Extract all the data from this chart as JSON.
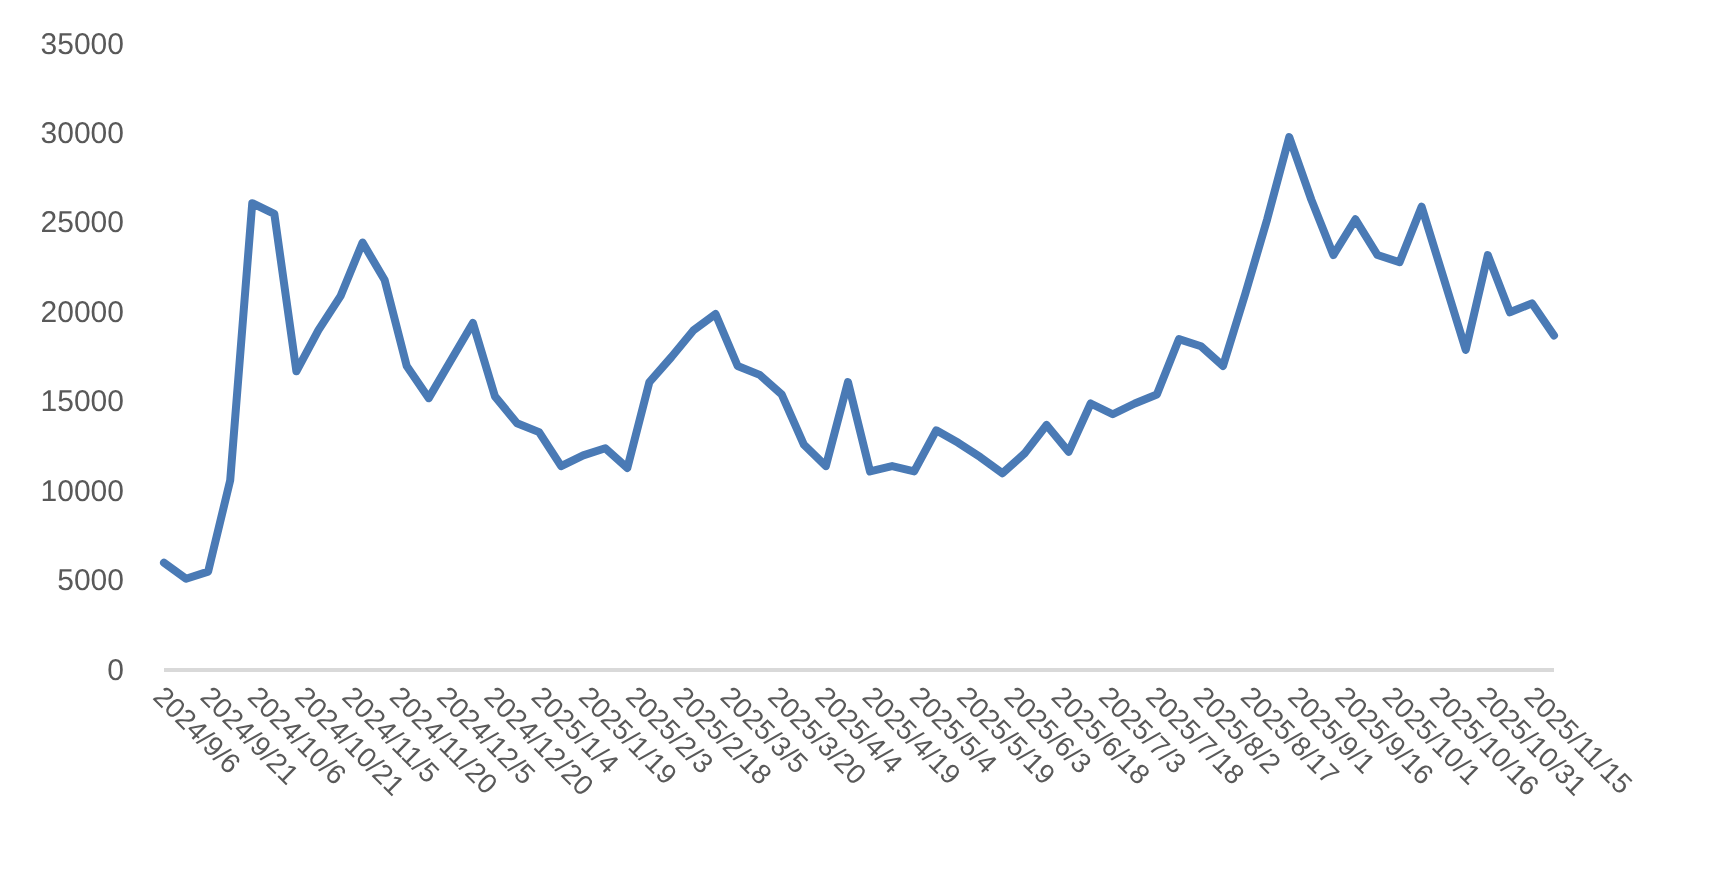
{
  "chart_data": {
    "type": "line",
    "x": [
      "2024-09-06",
      "2024-09-13",
      "2024-09-20",
      "2024-09-27",
      "2024-10-04",
      "2024-10-11",
      "2024-10-18",
      "2024-10-25",
      "2024-11-01",
      "2024-11-08",
      "2024-11-15",
      "2024-11-22",
      "2024-11-29",
      "2024-12-06",
      "2024-12-13",
      "2024-12-20",
      "2024-12-27",
      "2025-01-03",
      "2025-01-10",
      "2025-01-17",
      "2025-01-24",
      "2025-01-31",
      "2025-02-07",
      "2025-02-14",
      "2025-02-21",
      "2025-02-28",
      "2025-03-07",
      "2025-03-14",
      "2025-03-21",
      "2025-03-28",
      "2025-04-04",
      "2025-04-11",
      "2025-04-18",
      "2025-04-25",
      "2025-05-02",
      "2025-05-09",
      "2025-05-16",
      "2025-05-23",
      "2025-05-30",
      "2025-06-06",
      "2025-06-13",
      "2025-06-20",
      "2025-06-27",
      "2025-07-04",
      "2025-07-11",
      "2025-07-18",
      "2025-07-25",
      "2025-08-01",
      "2025-08-08",
      "2025-08-15",
      "2025-08-22",
      "2025-08-29",
      "2025-09-05",
      "2025-09-12",
      "2025-09-19",
      "2025-09-26",
      "2025-10-03",
      "2025-10-10",
      "2025-10-17",
      "2025-10-24",
      "2025-10-31",
      "2025-11-07",
      "2025-11-14",
      "2025-11-21"
    ],
    "series": [
      {
        "color": "#4a7ab5",
        "values": [
          6000,
          5100,
          5500,
          10600,
          26100,
          25500,
          16700,
          19000,
          20900,
          23900,
          21800,
          17000,
          15200,
          17300,
          19400,
          15300,
          13800,
          13300,
          11400,
          12000,
          12400,
          11300,
          16100,
          17500,
          19000,
          19900,
          17000,
          16500,
          15400,
          12600,
          11400,
          16100,
          11100,
          11400,
          11100,
          13400,
          12700,
          11900,
          11000,
          12100,
          13700,
          12200,
          14900,
          14300,
          14900,
          15400,
          18500,
          18100,
          17000,
          21000,
          25200,
          29800,
          26300,
          23200,
          25200,
          23200,
          22800,
          25900,
          21900,
          17900,
          23200,
          20000,
          20500,
          18700
        ]
      }
    ],
    "xlim": [
      "2024-09-06",
      "2025-11-21"
    ],
    "xticks": [
      {
        "value": "2024-09-06",
        "label": "2024/9/6"
      },
      {
        "value": "2024-09-21",
        "label": "2024/9/21"
      },
      {
        "value": "2024-10-06",
        "label": "2024/10/6"
      },
      {
        "value": "2024-10-21",
        "label": "2024/10/21"
      },
      {
        "value": "2024-11-05",
        "label": "2024/11/5"
      },
      {
        "value": "2024-11-20",
        "label": "2024/11/20"
      },
      {
        "value": "2024-12-05",
        "label": "2024/12/5"
      },
      {
        "value": "2024-12-20",
        "label": "2024/12/20"
      },
      {
        "value": "2025-01-04",
        "label": "2025/1/4"
      },
      {
        "value": "2025-01-19",
        "label": "2025/1/19"
      },
      {
        "value": "2025-02-03",
        "label": "2025/2/3"
      },
      {
        "value": "2025-02-18",
        "label": "2025/2/18"
      },
      {
        "value": "2025-03-05",
        "label": "2025/3/5"
      },
      {
        "value": "2025-03-20",
        "label": "2025/3/20"
      },
      {
        "value": "2025-04-04",
        "label": "2025/4/4"
      },
      {
        "value": "2025-04-19",
        "label": "2025/4/19"
      },
      {
        "value": "2025-05-04",
        "label": "2025/5/4"
      },
      {
        "value": "2025-05-19",
        "label": "2025/5/19"
      },
      {
        "value": "2025-06-03",
        "label": "2025/6/3"
      },
      {
        "value": "2025-06-18",
        "label": "2025/6/18"
      },
      {
        "value": "2025-07-03",
        "label": "2025/7/3"
      },
      {
        "value": "2025-07-18",
        "label": "2025/7/18"
      },
      {
        "value": "2025-08-02",
        "label": "2025/8/2"
      },
      {
        "value": "2025-08-17",
        "label": "2025/8/17"
      },
      {
        "value": "2025-09-01",
        "label": "2025/9/1"
      },
      {
        "value": "2025-09-16",
        "label": "2025/9/16"
      },
      {
        "value": "2025-10-01",
        "label": "2025/10/1"
      },
      {
        "value": "2025-10-16",
        "label": "2025/10/16"
      },
      {
        "value": "2025-10-31",
        "label": "2025/10/31"
      },
      {
        "value": "2025-11-15",
        "label": "2025/11/15"
      }
    ],
    "ylim": [
      0,
      35000
    ],
    "yticks": [
      0,
      5000,
      10000,
      15000,
      20000,
      25000,
      30000,
      35000
    ],
    "marker": "none",
    "line_style": "solid"
  }
}
